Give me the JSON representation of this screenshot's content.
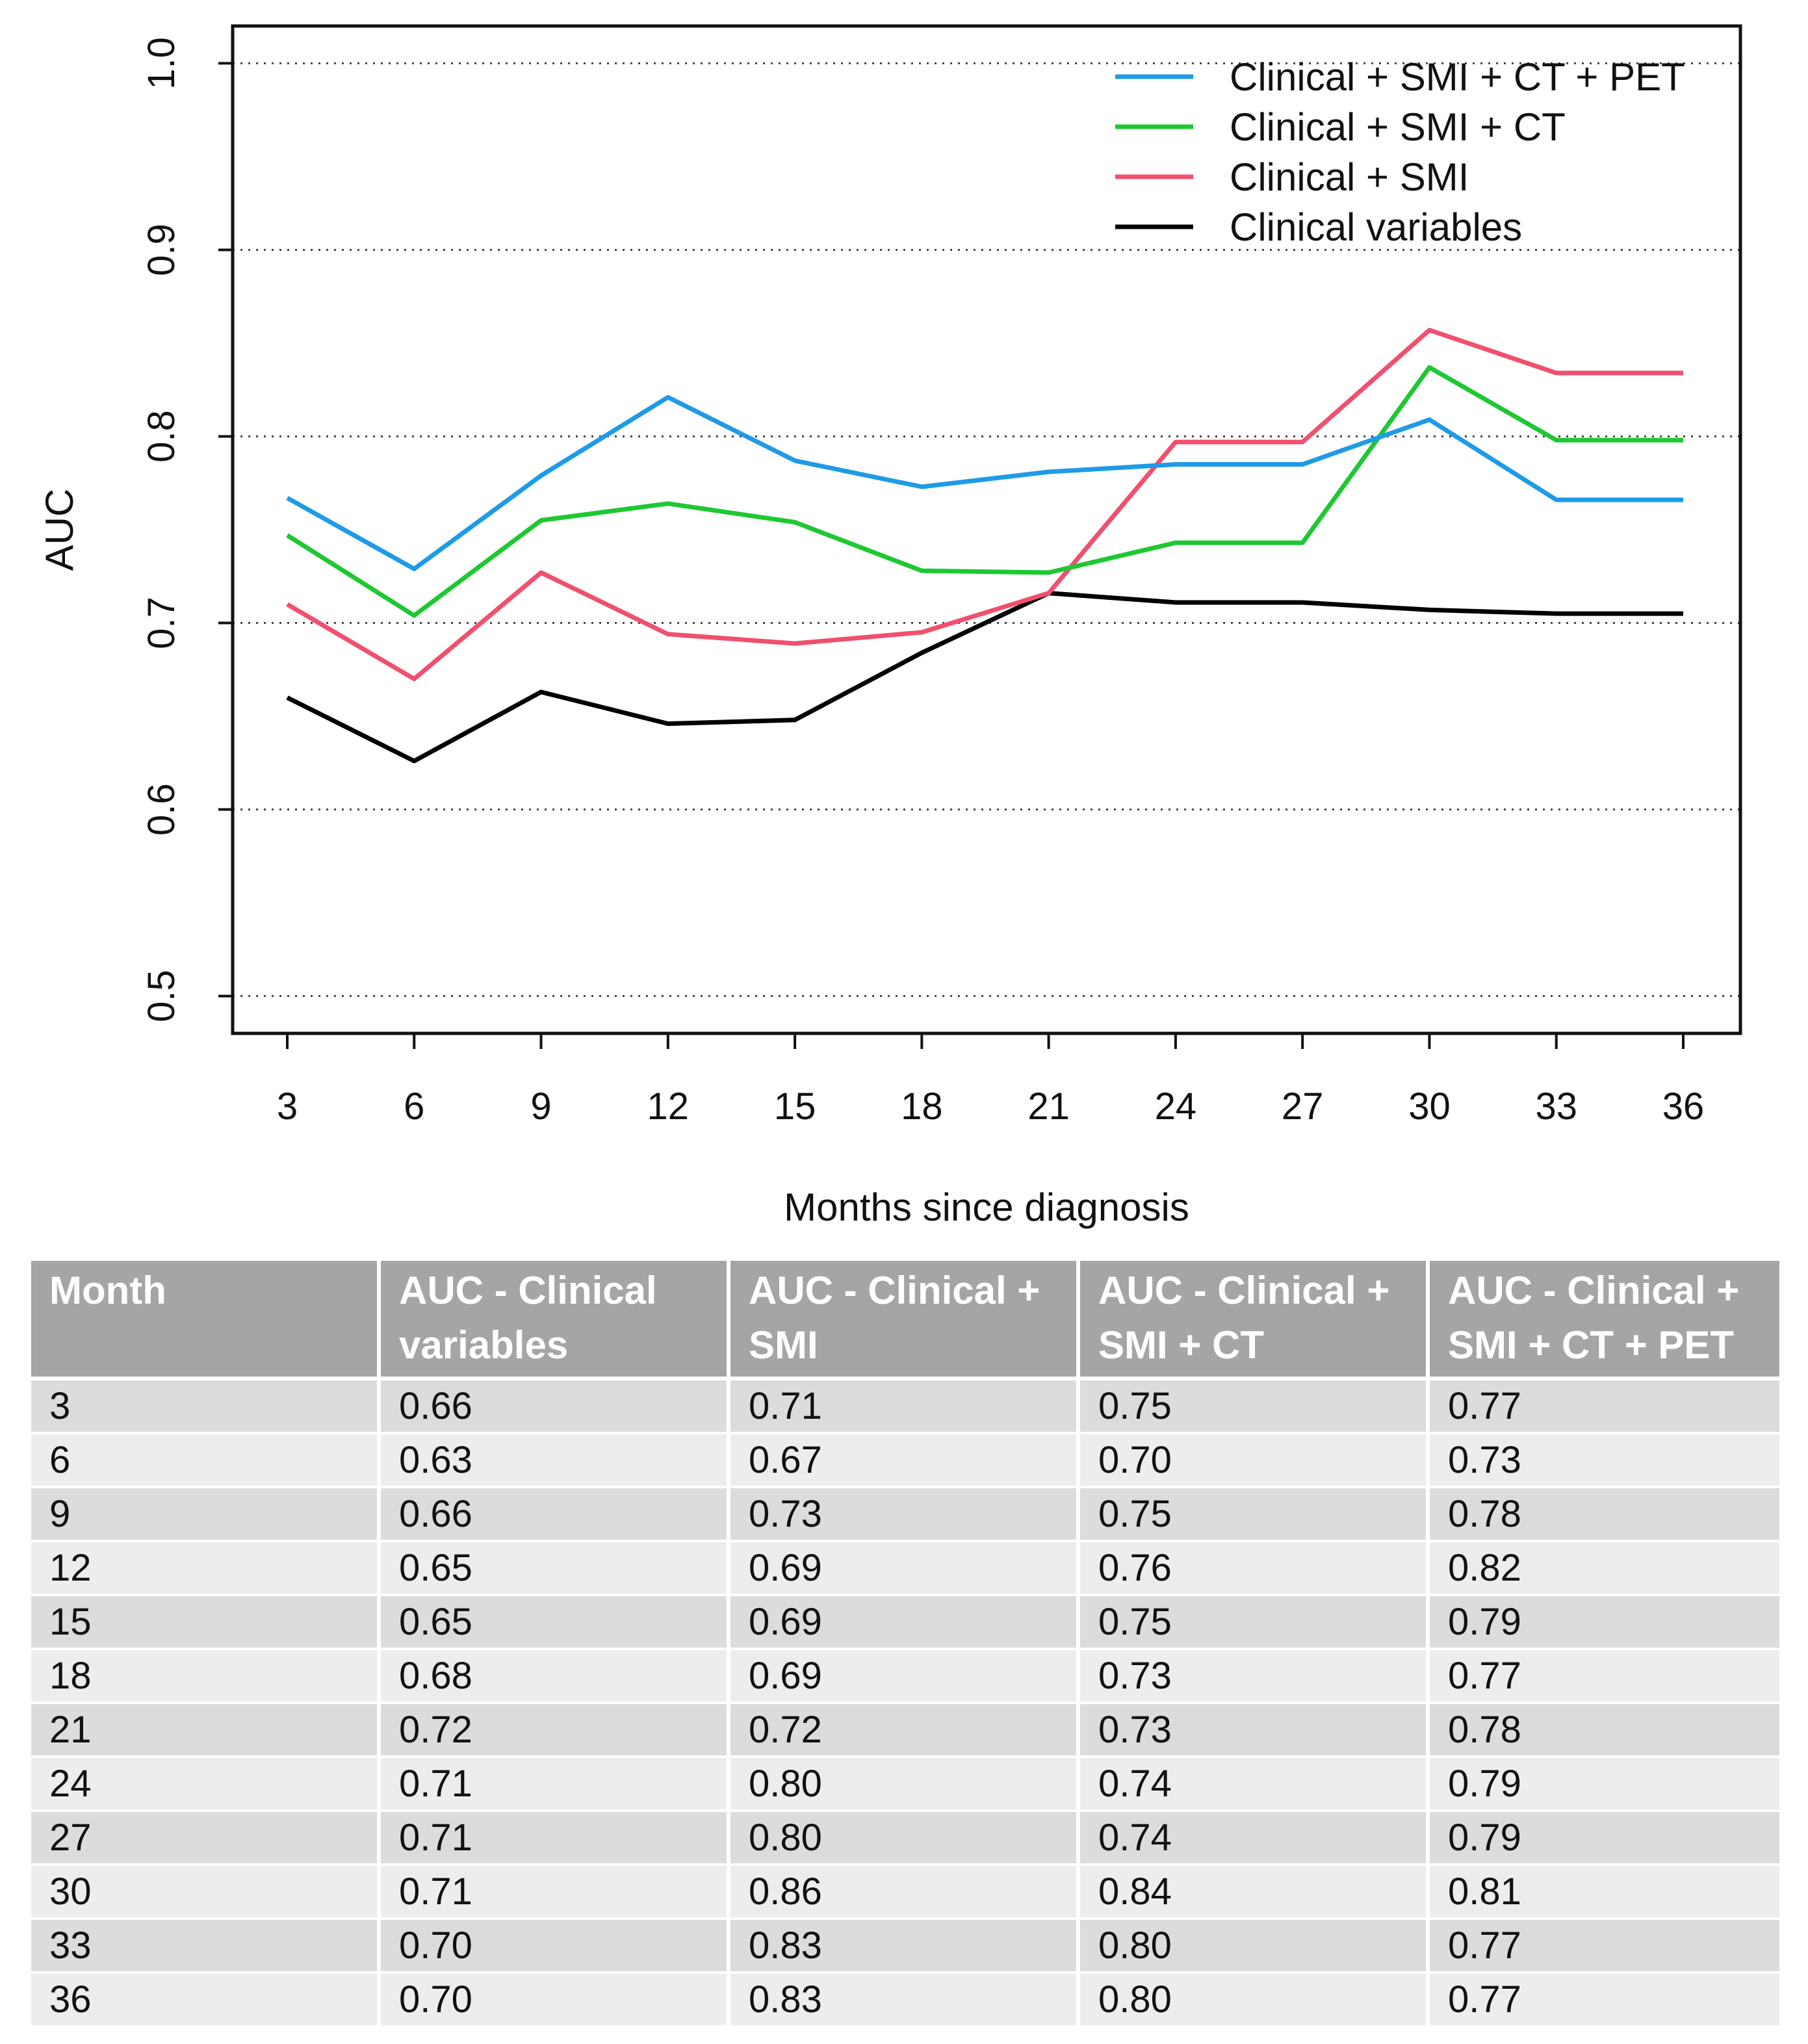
{
  "chart_data": {
    "type": "line",
    "xlabel": "Months since diagnosis",
    "ylabel": "AUC",
    "x": [
      3,
      6,
      9,
      12,
      15,
      18,
      21,
      24,
      27,
      30,
      33,
      36
    ],
    "ylim": [
      0.48,
      1.02
    ],
    "yticks": [
      "0.5",
      "0.6",
      "0.7",
      "0.8",
      "0.9",
      "1.0"
    ],
    "grid": "horizontal dotted",
    "legend_position": "top-right",
    "series": [
      {
        "name": "Clinical + SMI + CT + PET",
        "color": "#1e9be6",
        "values": [
          0.767,
          0.729,
          0.779,
          0.821,
          0.787,
          0.773,
          0.781,
          0.785,
          0.785,
          0.809,
          0.766,
          0.766
        ]
      },
      {
        "name": "Clinical + SMI + CT",
        "color": "#1ec832",
        "values": [
          0.747,
          0.704,
          0.755,
          0.764,
          0.754,
          0.728,
          0.727,
          0.743,
          0.743,
          0.837,
          0.798,
          0.798
        ]
      },
      {
        "name": "Clinical + SMI",
        "color": "#f0506e",
        "values": [
          0.71,
          0.67,
          0.727,
          0.694,
          0.689,
          0.695,
          0.716,
          0.797,
          0.797,
          0.857,
          0.834,
          0.834
        ]
      },
      {
        "name": "Clinical variables",
        "color": "#000000",
        "values": [
          0.66,
          0.626,
          0.663,
          0.646,
          0.648,
          0.684,
          0.716,
          0.711,
          0.711,
          0.707,
          0.705,
          0.705
        ]
      }
    ]
  },
  "table": {
    "headers": [
      [
        "Month"
      ],
      [
        "AUC - Clinical",
        "variables"
      ],
      [
        "AUC - Clinical +",
        "SMI"
      ],
      [
        "AUC - Clinical +",
        "SMI + CT"
      ],
      [
        "AUC - Clinical +",
        "SMI + CT + PET"
      ]
    ],
    "rows": [
      [
        "3",
        "0.66",
        "0.71",
        "0.75",
        "0.77"
      ],
      [
        "6",
        "0.63",
        "0.67",
        "0.70",
        "0.73"
      ],
      [
        "9",
        "0.66",
        "0.73",
        "0.75",
        "0.78"
      ],
      [
        "12",
        "0.65",
        "0.69",
        "0.76",
        "0.82"
      ],
      [
        "15",
        "0.65",
        "0.69",
        "0.75",
        "0.79"
      ],
      [
        "18",
        "0.68",
        "0.69",
        "0.73",
        "0.77"
      ],
      [
        "21",
        "0.72",
        "0.72",
        "0.73",
        "0.78"
      ],
      [
        "24",
        "0.71",
        "0.80",
        "0.74",
        "0.79"
      ],
      [
        "27",
        "0.71",
        "0.80",
        "0.74",
        "0.79"
      ],
      [
        "30",
        "0.71",
        "0.86",
        "0.84",
        "0.81"
      ],
      [
        "33",
        "0.70",
        "0.83",
        "0.80",
        "0.77"
      ],
      [
        "36",
        "0.70",
        "0.83",
        "0.80",
        "0.77"
      ]
    ]
  }
}
